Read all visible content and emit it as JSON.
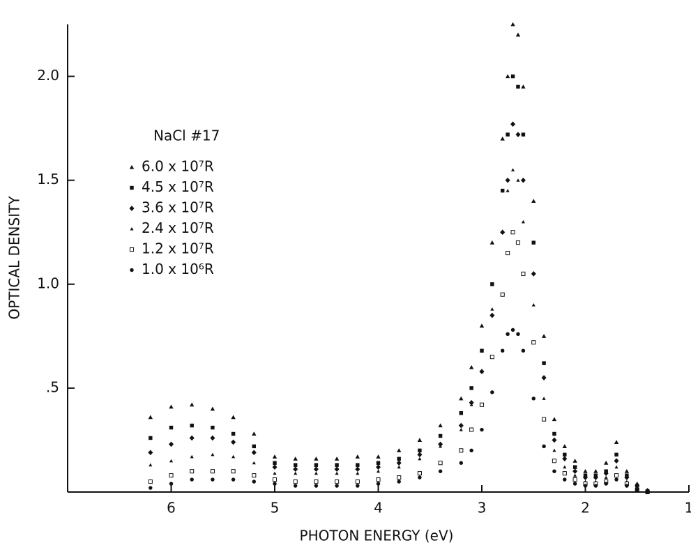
{
  "chart_data": {
    "type": "scatter",
    "legend_title": "NaCl #17",
    "x_label": "PHOTON ENERGY (eV)",
    "y_label": "OPTICAL DENSITY",
    "xlim": [
      7,
      1
    ],
    "ylim": [
      0,
      2.25
    ],
    "xticks": [
      6,
      5,
      4,
      3,
      2,
      1
    ],
    "yticks": [
      {
        "value": 0.5,
        "label": ".5"
      },
      {
        "value": 1.0,
        "label": "1.0"
      },
      {
        "value": 1.5,
        "label": "1.5"
      },
      {
        "value": 2.0,
        "label": "2.0"
      }
    ],
    "x": [
      6.2,
      6.0,
      5.8,
      5.6,
      5.4,
      5.2,
      5.0,
      4.8,
      4.6,
      4.4,
      4.2,
      4.0,
      3.8,
      3.6,
      3.4,
      3.2,
      3.1,
      3.0,
      2.9,
      2.8,
      2.75,
      2.7,
      2.65,
      2.6,
      2.5,
      2.4,
      2.3,
      2.2,
      2.1,
      2.0,
      1.9,
      1.8,
      1.7,
      1.6,
      1.5,
      1.4
    ],
    "series": [
      {
        "name": "6.0 x 10⁷R",
        "marker": "triangle",
        "color": "#111111",
        "values": [
          0.36,
          0.41,
          0.42,
          0.4,
          0.36,
          0.28,
          0.17,
          0.16,
          0.16,
          0.16,
          0.17,
          0.17,
          0.2,
          0.25,
          0.32,
          0.45,
          0.6,
          0.8,
          1.2,
          1.7,
          2.0,
          2.25,
          2.2,
          1.95,
          1.4,
          0.75,
          0.35,
          0.22,
          0.15,
          0.1,
          0.1,
          0.14,
          0.24,
          0.1,
          0.04,
          0.01
        ]
      },
      {
        "name": "4.5 x 10⁷R",
        "marker": "square",
        "color": "#111111",
        "values": [
          0.26,
          0.31,
          0.32,
          0.31,
          0.28,
          0.22,
          0.14,
          0.13,
          0.13,
          0.13,
          0.13,
          0.14,
          0.16,
          0.2,
          0.27,
          0.38,
          0.5,
          0.68,
          1.0,
          1.45,
          1.72,
          2.0,
          1.95,
          1.72,
          1.2,
          0.62,
          0.28,
          0.18,
          0.12,
          0.08,
          0.08,
          0.1,
          0.18,
          0.08,
          0.03,
          0.005
        ]
      },
      {
        "name": "3.6 x 10⁷R",
        "marker": "diamond",
        "color": "#111111",
        "values": [
          0.19,
          0.23,
          0.26,
          0.26,
          0.24,
          0.19,
          0.12,
          0.11,
          0.11,
          0.11,
          0.11,
          0.12,
          0.14,
          0.18,
          0.23,
          0.32,
          0.43,
          0.58,
          0.85,
          1.25,
          1.5,
          1.77,
          1.72,
          1.5,
          1.05,
          0.55,
          0.25,
          0.16,
          0.1,
          0.07,
          0.07,
          0.09,
          0.15,
          0.07,
          0.03,
          0.005
        ]
      },
      {
        "name": "2.4 x 10⁷R",
        "marker": "triangle-small",
        "color": "#111111",
        "values": [
          0.13,
          0.15,
          0.17,
          0.18,
          0.17,
          0.14,
          0.09,
          0.09,
          0.09,
          0.09,
          0.09,
          0.1,
          0.12,
          0.16,
          0.22,
          0.3,
          0.42,
          0.58,
          0.88,
          1.25,
          1.45,
          1.55,
          1.5,
          1.3,
          0.9,
          0.45,
          0.2,
          0.12,
          0.08,
          0.05,
          0.05,
          0.07,
          0.12,
          0.05,
          0.02,
          0
        ]
      },
      {
        "name": "1.2 x 10⁷R",
        "marker": "square-open",
        "color": "#111111",
        "values": [
          0.05,
          0.08,
          0.1,
          0.1,
          0.1,
          0.08,
          0.06,
          0.05,
          0.05,
          0.05,
          0.05,
          0.06,
          0.07,
          0.09,
          0.14,
          0.2,
          0.3,
          0.42,
          0.65,
          0.95,
          1.15,
          1.25,
          1.2,
          1.05,
          0.72,
          0.35,
          0.15,
          0.09,
          0.06,
          0.04,
          0.04,
          0.05,
          0.08,
          0.04,
          0.01,
          0
        ]
      },
      {
        "name": "1.0 x 10⁶R",
        "marker": "circle",
        "color": "#111111",
        "values": [
          0.02,
          0.04,
          0.06,
          0.06,
          0.06,
          0.05,
          0.04,
          0.03,
          0.03,
          0.03,
          0.03,
          0.04,
          0.05,
          0.07,
          0.1,
          0.14,
          0.2,
          0.3,
          0.48,
          0.68,
          0.76,
          0.78,
          0.76,
          0.68,
          0.45,
          0.22,
          0.1,
          0.06,
          0.04,
          0.03,
          0.03,
          0.04,
          0.06,
          0.03,
          0.01,
          0
        ]
      }
    ]
  }
}
